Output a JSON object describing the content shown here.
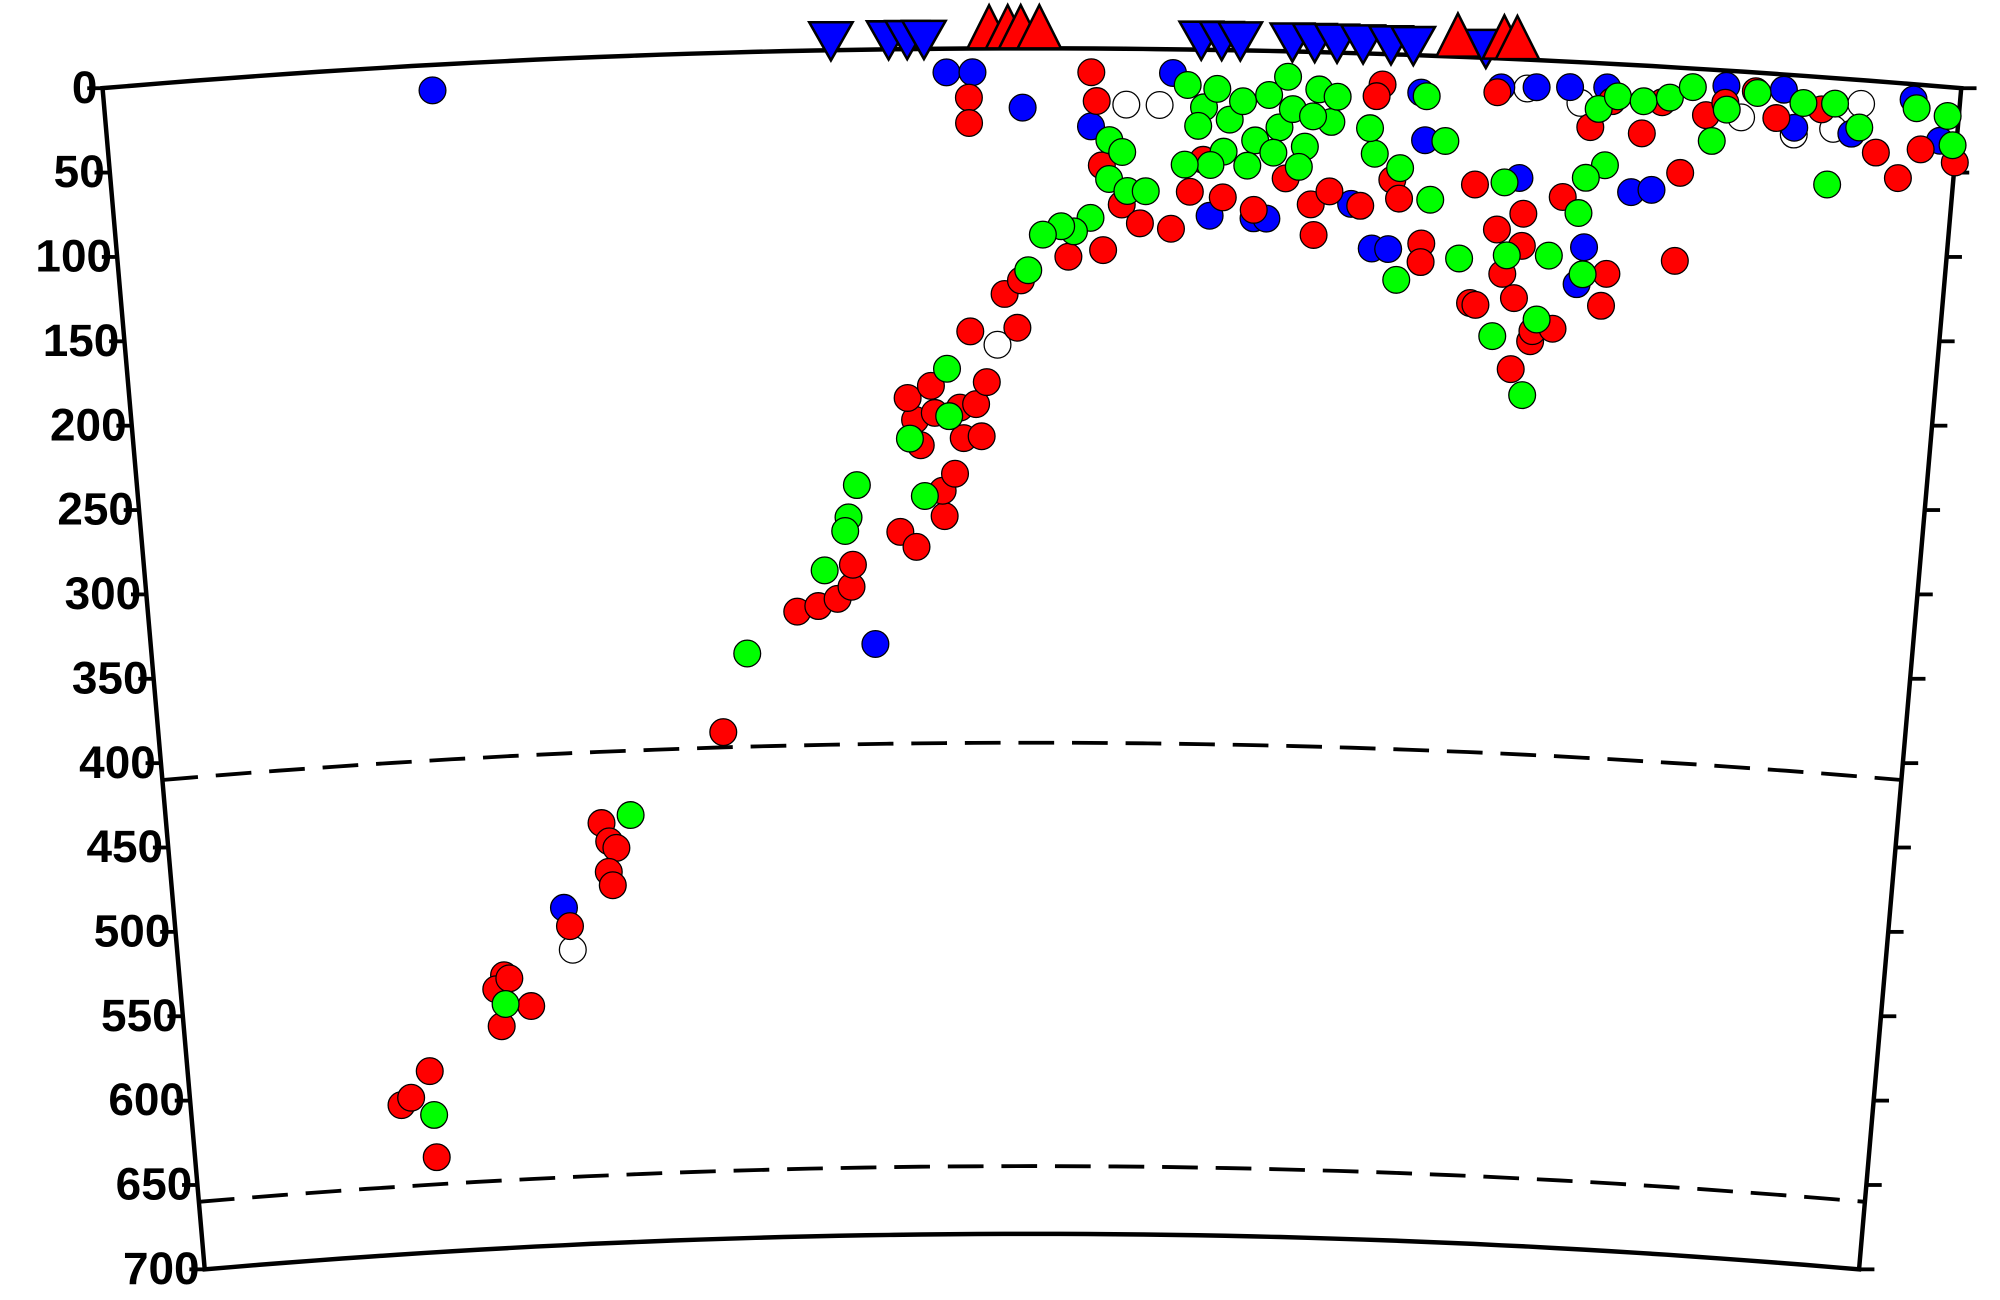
{
  "chart_data": {
    "type": "scatter",
    "ylim": [
      0,
      700
    ],
    "yticks": [
      0,
      50,
      100,
      150,
      200,
      250,
      300,
      350,
      400,
      450,
      500,
      550,
      600,
      650,
      700
    ],
    "xlim": [
      0,
      100
    ],
    "hlines": [
      410,
      660
    ],
    "series": [
      {
        "color": "#ffffff",
        "marker": "circle",
        "x": [
          48.1,
          23.1,
          55.1,
          56.9,
          76.7,
          79.6,
          91.2,
          93.3,
          94.7,
          88.3
        ],
        "values": [
          175,
          526,
          33,
          33,
          17,
          24,
          35,
          30,
          14,
          27
        ]
      },
      {
        "color": "#0000ff",
        "marker": "circle",
        "x": [
          17.7,
          45.4,
          46.8,
          49.5,
          53.2,
          57.6,
          62.1,
          68.6,
          69.5,
          67.4,
          71.3,
          71.0,
          75.3,
          77.2,
          79.0,
          81.0,
          76.5,
          80.2,
          79.9,
          82.6,
          83.7,
          87.4,
          90.5,
          91.2,
          94.3,
          97.5,
          99.1,
          41.1,
          22.7,
          59.7,
          62.8
        ],
        "values": [
          15,
          14,
          14,
          35,
          46,
          14,
          99,
          115,
          115,
          89,
          50,
          22,
          17,
          16,
          15,
          14,
          70,
          109,
          131,
          75,
          73,
          9,
          9,
          31,
          32,
          9,
          32,
          351,
          501,
          98,
          99
        ]
      },
      {
        "color": "#ff0000",
        "marker": "circle",
        "x": [
          14.4,
          14.3,
          12.5,
          13.1,
          19.0,
          18.5,
          18.7,
          20.5,
          19.3,
          23.0,
          25.1,
          25.5,
          25.9,
          25.4,
          25.6,
          32.3,
          36.7,
          37.9,
          39.0,
          39.8,
          39.9,
          42.6,
          43.5,
          45.1,
          45.0,
          45.7,
          46.2,
          43.8,
          43.5,
          44.6,
          43.1,
          44.4,
          46.0,
          46.9,
          47.2,
          47.5,
          46.6,
          49.2,
          48.5,
          49.4,
          52.0,
          53.9,
          53.2,
          53.5,
          46.6,
          46.6,
          53.8,
          54.9,
          55.9,
          57.6,
          58.6,
          59.3,
          60.4,
          62.1,
          63.8,
          65.2,
          65.4,
          66.2,
          67.9,
          68.9,
          68.6,
          69.6,
          70.0,
          71.3,
          71.3,
          74.1,
          75.1,
          74.1,
          75.4,
          75.8,
          76.5,
          76.8,
          76.8,
          74.4,
          77.5,
          76.5,
          77.6,
          78.7,
          78.9,
          81.3,
          81.5,
          85.2,
          80.2,
          81.3,
          83.0,
          84.0,
          85.2,
          86.4,
          87.4,
          89.0,
          90.2,
          92.6,
          95.7,
          97.0,
          98.1,
          100
        ],
        "values": [
          644,
          593,
          612,
          608,
          539,
          547,
          569,
          558,
          541,
          512,
          452,
          463,
          467,
          481,
          489,
          401,
          331,
          328,
          324,
          317,
          304,
          285,
          294,
          276,
          261,
          251,
          230,
          234,
          219,
          215,
          206,
          199,
          212,
          210,
          229,
          197,
          167,
          165,
          145,
          137,
          123,
          119,
          14,
          31,
          29,
          44,
          69,
          92,
          103,
          106,
          84,
          65,
          87,
          94,
          75,
          90,
          108,
          82,
          90,
          18,
          25,
          74,
          85,
          111,
          122,
          75,
          20,
          145,
          101,
          127,
          141,
          91,
          110,
          146,
          166,
          183,
          160,
          158,
          80,
          143,
          124,
          114,
          38,
          22,
          40,
          21,
          62,
          27,
          19,
          11,
          26,
          19,
          42,
          56,
          38,
          44
        ]
      },
      {
        "color": "#00ff00",
        "marker": "circle",
        "x": [
          58.4,
          59.3,
          60.0,
          60.7,
          61.4,
          62.1,
          62.8,
          63.4,
          64.1,
          64.8,
          65.5,
          66.2,
          66.5,
          60.4,
          61.7,
          63.1,
          64.5,
          59.0,
          59.7,
          63.8,
          65.2,
          54.2,
          54.9,
          54.2,
          55.2,
          56.2,
          58.3,
          68.6,
          68.3,
          70.0,
          71.3,
          72.4,
          71.7,
          70.0,
          73.4,
          75.7,
          76.0,
          78.3,
          77.8,
          75.4,
          77.2,
          80.2,
          79.8,
          81.1,
          80.1,
          80.6,
          81.6,
          83.0,
          84.4,
          85.6,
          86.8,
          87.5,
          89.1,
          91.6,
          93.3,
          94.7,
          93.2,
          97.7,
          99.4,
          99.8,
          53.2,
          52.3,
          51.6,
          50.6,
          49.8,
          45.3,
          45.4,
          43.2,
          40.2,
          44.0,
          39.7,
          39.5,
          38.3,
          33.8,
          26.8,
          19.0,
          14.4
        ],
        "values": [
          21,
          34,
          23,
          41,
          30,
          53,
          26,
          45,
          34,
          56,
          22,
          41,
          26,
          60,
          68,
          60,
          68,
          45,
          68,
          15,
          38,
          54,
          61,
          77,
          84,
          84,
          68,
          59,
          44,
          67,
          24,
          50,
          85,
          133,
          119,
          73,
          116,
          115,
          153,
          164,
          198,
          125,
          89,
          60,
          68,
          27,
          19,
          21,
          18,
          11,
          42,
          23,
          12,
          16,
          15,
          28,
          63,
          14,
          17,
          34,
          100,
          108,
          105,
          110,
          131,
          189,
          217,
          230,
          257,
          264,
          276,
          284,
          307,
          355,
          448,
          556,
          619
        ]
      },
      {
        "color": "#0000ff",
        "marker": "triangle-down",
        "x": [
          39.2,
          42.3,
          43.3,
          44.2,
          59.1,
          60.2,
          61.2,
          64.0,
          65.2,
          66.4,
          67.8,
          69.3,
          70.5,
          74.4
        ],
        "values": [
          0,
          0,
          0,
          0,
          0,
          0,
          0,
          0,
          0,
          0,
          0,
          0,
          0,
          0
        ]
      },
      {
        "color": "#ff0000",
        "marker": "triangle-up",
        "x": [
          47.7,
          48.7,
          49.4,
          50.4,
          72.9,
          75.4,
          76.1
        ],
        "values": [
          0,
          0,
          0,
          0,
          0,
          0,
          0
        ]
      }
    ]
  }
}
